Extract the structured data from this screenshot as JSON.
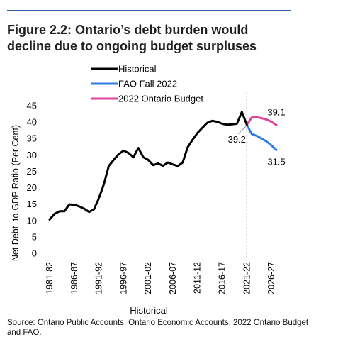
{
  "figure_title_line1": "Figure 2.2: Ontario’s debt burden would",
  "figure_title_line2": "decline due to ongoing budget surpluses",
  "source_note": "Source: Ontario Public Accounts, Ontario Economic Accounts, 2022 Ontario Budget and FAO.",
  "colors": {
    "accent_rule": "#2f5fa7",
    "historical": "#000000",
    "fao": "#2f7de1",
    "budget": "#e0449a",
    "divider": "#999999"
  },
  "chart_data": {
    "type": "line",
    "ylabel": "Net Debt -to-GDP Ratio (Per Cent)",
    "xlabel": "Historical",
    "ylim": [
      0,
      45
    ],
    "yticks": [
      0,
      5,
      10,
      15,
      20,
      25,
      30,
      35,
      40,
      45
    ],
    "x_start_year": 1981,
    "x_end_year": 2027,
    "xtick_labels": [
      "1981-82",
      "1986-87",
      "1991-92",
      "1996-97",
      "2001-02",
      "2006-07",
      "2011-12",
      "2016-17",
      "2021-22",
      "2026-27"
    ],
    "xtick_years": [
      1981,
      1986,
      1991,
      1996,
      2001,
      2006,
      2011,
      2016,
      2021,
      2026
    ],
    "divider_year": 2021,
    "legend_position": "top-left",
    "series": [
      {
        "name": "Historical",
        "color": "#000000",
        "x": [
          1981,
          1982,
          1983,
          1984,
          1985,
          1986,
          1987,
          1988,
          1989,
          1990,
          1991,
          1992,
          1993,
          1994,
          1995,
          1996,
          1997,
          1998,
          1999,
          2000,
          2001,
          2002,
          2003,
          2004,
          2005,
          2006,
          2007,
          2008,
          2009,
          2010,
          2011,
          2012,
          2013,
          2014,
          2015,
          2016,
          2017,
          2018,
          2019,
          2020,
          2021
        ],
        "values": [
          10.3,
          12.0,
          12.8,
          12.8,
          14.9,
          14.8,
          14.3,
          13.6,
          12.6,
          13.4,
          16.8,
          21.0,
          26.6,
          28.5,
          30.2,
          31.3,
          30.6,
          29.3,
          32.1,
          29.3,
          28.5,
          26.9,
          27.4,
          26.7,
          27.7,
          27.1,
          26.6,
          27.7,
          32.3,
          34.6,
          36.7,
          38.3,
          39.8,
          40.4,
          40.1,
          39.5,
          39.2,
          39.3,
          39.5,
          43.1,
          39.2
        ]
      },
      {
        "name": "FAO Fall 2022",
        "color": "#2f7de1",
        "x": [
          2021,
          2022,
          2023,
          2024,
          2025,
          2026,
          2027
        ],
        "values": [
          39.2,
          36.4,
          35.8,
          35.0,
          34.1,
          32.9,
          31.5
        ]
      },
      {
        "name": "2022 Ontario Budget",
        "color": "#e0449a",
        "x": [
          2021,
          2022,
          2023,
          2024,
          2025,
          2026,
          2027
        ],
        "values": [
          39.2,
          41.4,
          41.5,
          41.2,
          40.8,
          40.1,
          39.1
        ]
      }
    ],
    "annotations": [
      {
        "text": "39.2",
        "x": 2021,
        "y": 39.2
      },
      {
        "text": "39.1",
        "x": 2027,
        "y": 39.1
      },
      {
        "text": "31.5",
        "x": 2027,
        "y": 31.5
      }
    ]
  }
}
